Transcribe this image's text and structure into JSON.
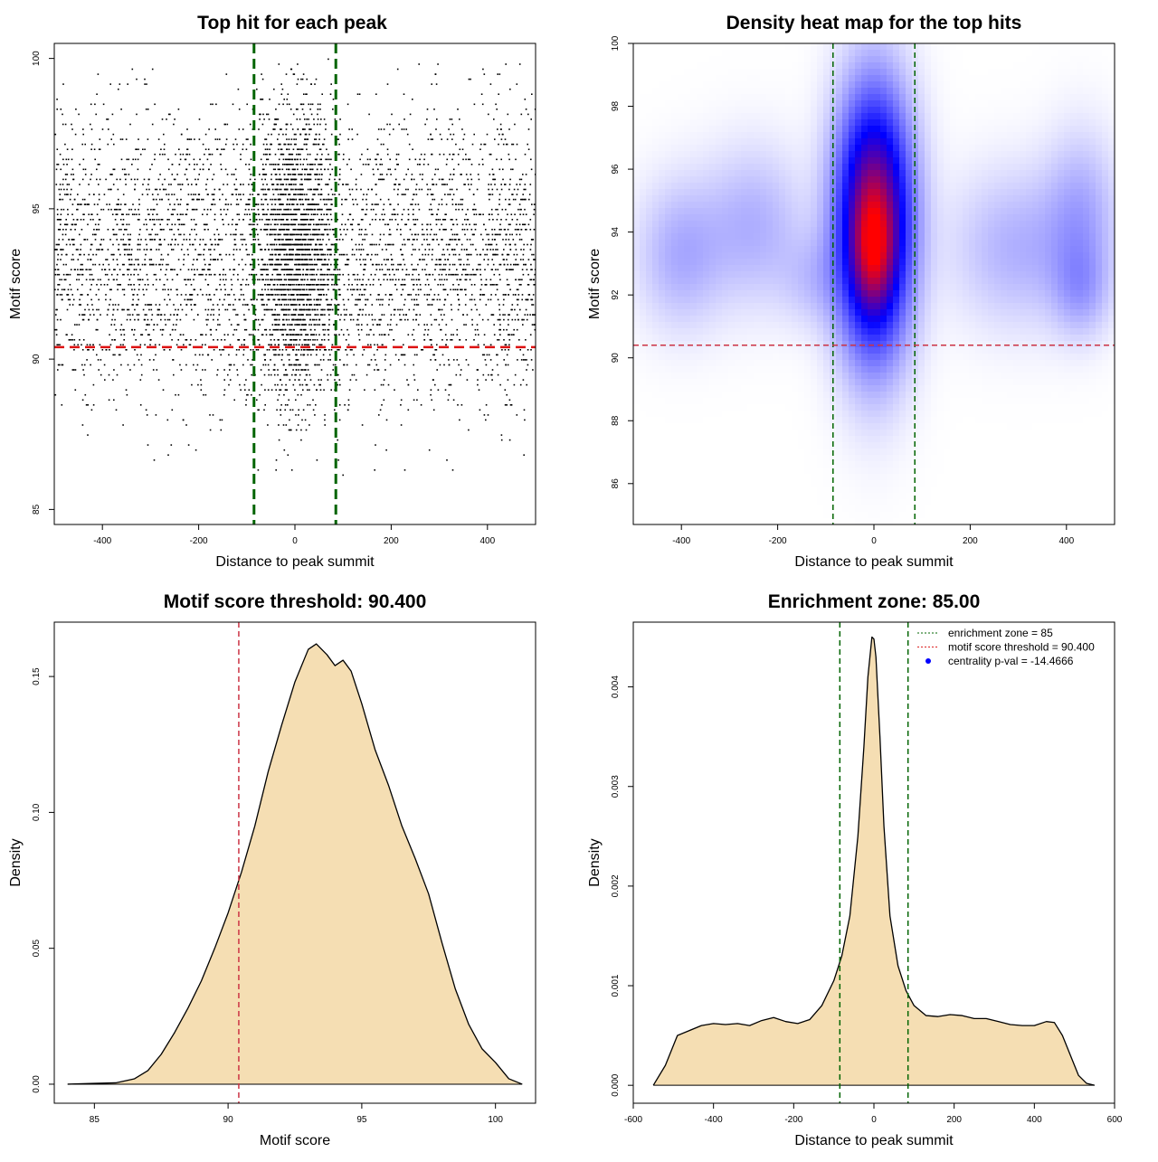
{
  "chart_data": [
    {
      "type": "scatter",
      "title": "Top hit for each peak",
      "xlabel": "Distance to peak summit",
      "ylabel": "Motif score",
      "xlim": [
        -500,
        500
      ],
      "ylim": [
        84.5,
        100.5
      ],
      "xticks": [
        -400,
        -200,
        0,
        200,
        400
      ],
      "yticks": [
        85,
        90,
        95,
        100
      ],
      "vlines": [
        -85,
        85
      ],
      "hline": 90.4,
      "point_distribution": {
        "x_range": [
          -500,
          500
        ],
        "y_range": [
          84.8,
          100
        ],
        "central_peak_width": 70,
        "score_mode": 93.5
      },
      "colors": {
        "points": "#000000",
        "vlines": "#006400",
        "hline": "#dd1111"
      }
    },
    {
      "type": "heatmap",
      "title": "Density heat map for the top hits",
      "xlabel": "Distance to peak summit",
      "ylabel": "Motif score",
      "xlim": [
        -500,
        500
      ],
      "ylim": [
        84.7,
        100
      ],
      "xticks": [
        -400,
        -200,
        0,
        200,
        400
      ],
      "yticks": [
        86,
        88,
        90,
        92,
        94,
        96,
        98,
        100
      ],
      "vlines": [
        -85,
        85
      ],
      "hline": 90.4,
      "density_blobs": [
        {
          "x": 0,
          "y": 94.3,
          "sx": 50,
          "sy": 2.6,
          "w": 1.0
        },
        {
          "x": 0,
          "y": 93.5,
          "sx": 25,
          "sy": 1.2,
          "w": 0.4
        },
        {
          "x": -400,
          "y": 93.3,
          "sx": 60,
          "sy": 1.5,
          "w": 0.13
        },
        {
          "x": -250,
          "y": 94.2,
          "sx": 70,
          "sy": 1.6,
          "w": 0.12
        },
        {
          "x": 300,
          "y": 93.5,
          "sx": 90,
          "sy": 1.6,
          "w": 0.12
        },
        {
          "x": 430,
          "y": 94.5,
          "sx": 50,
          "sy": 1.7,
          "w": 0.13
        },
        {
          "x": 430,
          "y": 92.2,
          "sx": 40,
          "sy": 1.0,
          "w": 0.12
        },
        {
          "x": -120,
          "y": 92.5,
          "sx": 50,
          "sy": 1.0,
          "w": 0.08
        }
      ],
      "colors": {
        "low": "#ffffff",
        "mid": "#0000ff",
        "high": "#ff0000",
        "vlines": "#006400",
        "hline": "#cc3344"
      }
    },
    {
      "type": "area",
      "title": "Motif score threshold: 90.400",
      "xlabel": "Motif score",
      "ylabel": "Density",
      "xlim": [
        83.5,
        101.5
      ],
      "ylim": [
        -0.007,
        0.17
      ],
      "xticks": [
        85,
        90,
        95,
        100
      ],
      "yticks": [
        0.0,
        0.05,
        0.1,
        0.15
      ],
      "ytick_labels": [
        "0.00",
        "0.05",
        "0.10",
        "0.15"
      ],
      "vline": 90.4,
      "x": [
        84,
        85,
        85.8,
        86.5,
        87,
        87.5,
        88,
        88.5,
        89,
        89.5,
        90,
        90.5,
        91,
        91.5,
        92,
        92.5,
        93,
        93.3,
        93.7,
        94,
        94.3,
        94.6,
        95,
        95.5,
        96,
        96.5,
        97,
        97.5,
        98,
        98.5,
        99,
        99.5,
        100,
        100.5,
        101
      ],
      "y": [
        0.0,
        0.0003,
        0.0005,
        0.002,
        0.005,
        0.011,
        0.019,
        0.028,
        0.038,
        0.05,
        0.063,
        0.078,
        0.095,
        0.115,
        0.132,
        0.148,
        0.16,
        0.162,
        0.158,
        0.154,
        0.156,
        0.152,
        0.14,
        0.123,
        0.11,
        0.095,
        0.083,
        0.07,
        0.052,
        0.035,
        0.022,
        0.013,
        0.008,
        0.002,
        0.0
      ],
      "colors": {
        "fill": "#f5deb3",
        "line": "#000000",
        "vline": "#cc3344"
      }
    },
    {
      "type": "area",
      "title": "Enrichment zone: 85.00",
      "xlabel": "Distance to peak summit",
      "ylabel": "Density",
      "xlim": [
        -600,
        600
      ],
      "ylim": [
        -0.00018,
        0.00465
      ],
      "xticks": [
        -600,
        -400,
        -200,
        0,
        200,
        400,
        600
      ],
      "yticks": [
        0.0,
        0.001,
        0.002,
        0.003,
        0.004
      ],
      "ytick_labels": [
        "0.000",
        "0.001",
        "0.002",
        "0.003",
        "0.004"
      ],
      "vlines": [
        -85,
        85
      ],
      "x": [
        -550,
        -520,
        -490,
        -460,
        -430,
        -400,
        -370,
        -340,
        -310,
        -280,
        -250,
        -220,
        -190,
        -160,
        -130,
        -100,
        -80,
        -60,
        -40,
        -25,
        -15,
        -5,
        0,
        5,
        15,
        25,
        40,
        60,
        80,
        100,
        130,
        160,
        190,
        220,
        250,
        280,
        310,
        340,
        370,
        400,
        430,
        450,
        470,
        490,
        510,
        530,
        550
      ],
      "y": [
        0.0,
        0.0002,
        0.0005,
        0.00055,
        0.0006,
        0.00062,
        0.00061,
        0.00062,
        0.0006,
        0.00065,
        0.00068,
        0.00064,
        0.00062,
        0.00066,
        0.0008,
        0.00105,
        0.0013,
        0.0017,
        0.0025,
        0.0034,
        0.0041,
        0.0045,
        0.00448,
        0.0043,
        0.0035,
        0.0026,
        0.0017,
        0.0012,
        0.00095,
        0.0008,
        0.0007,
        0.00069,
        0.00071,
        0.0007,
        0.00067,
        0.00067,
        0.00064,
        0.00061,
        0.0006,
        0.0006,
        0.00064,
        0.00063,
        0.0005,
        0.0003,
        0.0001,
        2e-05,
        0.0
      ],
      "legend": {
        "position": "top-right",
        "entries": [
          {
            "label": "enrichment zone = 85",
            "style": "dotted-line",
            "color": "#006400"
          },
          {
            "label": "motif score threshold = 90.400",
            "style": "dotted-line",
            "color": "#dd2222"
          },
          {
            "label": "centrality p-val = -14.4666",
            "style": "dot",
            "color": "#0000ff"
          }
        ]
      },
      "colors": {
        "fill": "#f5deb3",
        "line": "#000000",
        "vlines": "#006400"
      }
    }
  ]
}
